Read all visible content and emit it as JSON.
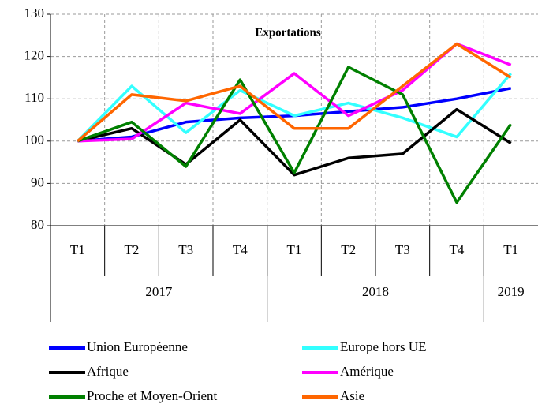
{
  "chart_data": {
    "type": "line",
    "title": "Exportations",
    "categories": [
      "T1",
      "T2",
      "T3",
      "T4",
      "T1",
      "T2",
      "T3",
      "T4",
      "T1"
    ],
    "groups": [
      {
        "label": "2017",
        "count": 4
      },
      {
        "label": "2018",
        "count": 4
      },
      {
        "label": "2019",
        "count": 1
      }
    ],
    "series": [
      {
        "name": "Union Européenne",
        "color": "#0000ff",
        "values": [
          100,
          101,
          104.5,
          105.5,
          106,
          107,
          108,
          110,
          112.5
        ]
      },
      {
        "name": "Europe hors UE",
        "color": "#33ffff",
        "values": [
          100,
          113,
          102,
          112,
          106,
          109,
          105.5,
          101,
          116
        ]
      },
      {
        "name": "Afrique",
        "color": "#000000",
        "values": [
          100,
          103,
          94.5,
          105,
          92,
          96,
          97,
          107.5,
          99.5
        ]
      },
      {
        "name": "Amérique",
        "color": "#ff00ff",
        "values": [
          100,
          100.5,
          109,
          106.5,
          116,
          106,
          112,
          123,
          118
        ]
      },
      {
        "name": "Proche et Moyen-Orient",
        "color": "#008000",
        "values": [
          100,
          104.5,
          94,
          114.5,
          92.5,
          117.5,
          111,
          85.5,
          104
        ]
      },
      {
        "name": "Asie",
        "color": "#ff6600",
        "values": [
          100,
          111,
          109.5,
          113,
          103,
          103,
          113,
          123,
          115
        ]
      }
    ],
    "ylim": [
      80,
      130
    ],
    "yticks": [
      80,
      90,
      100,
      110,
      120,
      130
    ],
    "grid": true
  }
}
